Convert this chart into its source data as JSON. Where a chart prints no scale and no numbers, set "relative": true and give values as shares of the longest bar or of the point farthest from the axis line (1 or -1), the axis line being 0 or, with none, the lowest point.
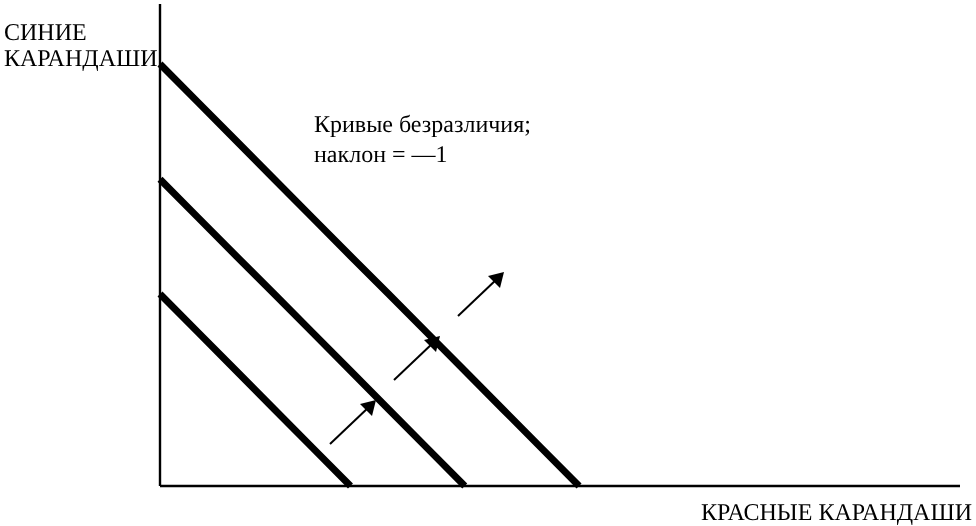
{
  "chart_data": {
    "type": "line",
    "relative": true,
    "xlabel": "КРАСНЫЕ КАРАНДАШИ",
    "ylabel": "СИНИЕ КАРАНДАШИ",
    "annotations": [
      "Кривые безразличия; наклон = —1"
    ],
    "line_style": "solid",
    "marker": "none",
    "categories": [
      null,
      null,
      null,
      null,
      null,
      null,
      null,
      null,
      null,
      null,
      null,
      null,
      null,
      null,
      null,
      null,
      null,
      null,
      null,
      null,
      null,
      null
    ],
    "series": [
      {
        "color": "#000000",
        "values": [
          0.455,
          0.364,
          0.273,
          0.182,
          0.091,
          0,
          null,
          null,
          null,
          null,
          null,
          null,
          null,
          null,
          null,
          null,
          null,
          null,
          null,
          null,
          null,
          null
        ]
      },
      {
        "color": "#000000",
        "values": [
          0.727,
          0.636,
          0.545,
          0.455,
          0.364,
          0.273,
          0.182,
          0.091,
          0,
          null,
          null,
          null,
          null,
          null,
          null,
          null,
          null,
          null,
          null,
          null,
          null,
          null
        ]
      },
      {
        "color": "#000000",
        "values": [
          1,
          0.909,
          0.818,
          0.727,
          0.636,
          0.545,
          0.455,
          0.364,
          0.273,
          0.182,
          0.091,
          0,
          null,
          null,
          null,
          null,
          null,
          null,
          null,
          null,
          null,
          null
        ]
      }
    ]
  }
}
